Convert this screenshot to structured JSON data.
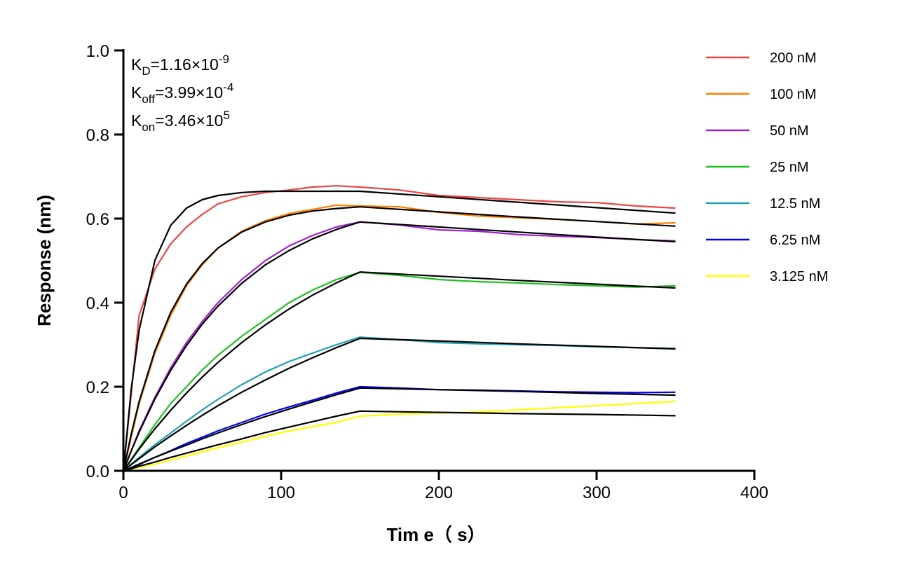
{
  "chart_data": {
    "type": "line",
    "title": "",
    "xlabel": "Tim e（ s）",
    "ylabel": "Response (nm)",
    "xlim": [
      0,
      400
    ],
    "ylim": [
      0,
      1.0
    ],
    "xticks": [
      "0",
      "100",
      "200",
      "300",
      "400"
    ],
    "yticks": [
      "0.0",
      "0.2",
      "0.4",
      "0.6",
      "0.8",
      "1.0"
    ],
    "grid": false,
    "legend_position": "top-right",
    "annotations": [
      {
        "symbol": "K",
        "sub": "D",
        "value": "=1.16×10",
        "exp": "-9"
      },
      {
        "symbol": "K",
        "sub": "off",
        "value": "=3.99×10",
        "exp": "-4"
      },
      {
        "symbol": "K",
        "sub": "on",
        "value": "=3.46×10",
        "exp": "5"
      }
    ],
    "raw_x": [
      0,
      10,
      20,
      30,
      40,
      50,
      60,
      75,
      90,
      105,
      120,
      135,
      150,
      175,
      200,
      225,
      250,
      275,
      300,
      325,
      350
    ],
    "fit_x": [
      0,
      5,
      10,
      20,
      30,
      40,
      50,
      60,
      75,
      90,
      105,
      120,
      135,
      150,
      200,
      250,
      300,
      350
    ],
    "fit_color": "#000000",
    "series": [
      {
        "name": "200 nM",
        "color": "#ee4444",
        "raw": [
          0,
          0.37,
          0.48,
          0.54,
          0.58,
          0.61,
          0.635,
          0.652,
          0.662,
          0.668,
          0.675,
          0.678,
          0.675,
          0.668,
          0.655,
          0.65,
          0.645,
          0.64,
          0.638,
          0.63,
          0.625
        ],
        "fit": [
          0,
          0.196,
          0.335,
          0.501,
          0.584,
          0.625,
          0.645,
          0.655,
          0.662,
          0.665,
          0.665,
          0.665,
          0.665,
          0.665,
          0.652,
          0.639,
          0.626,
          0.613
        ]
      },
      {
        "name": "100 nM",
        "color": "#ff8000",
        "raw": [
          0,
          0.16,
          0.28,
          0.37,
          0.44,
          0.49,
          0.53,
          0.57,
          0.595,
          0.612,
          0.622,
          0.632,
          0.63,
          0.628,
          0.615,
          0.606,
          0.602,
          0.598,
          0.593,
          0.587,
          0.59
        ],
        "fit": [
          0,
          0.088,
          0.165,
          0.286,
          0.377,
          0.444,
          0.493,
          0.53,
          0.568,
          0.592,
          0.608,
          0.618,
          0.624,
          0.628,
          0.616,
          0.604,
          0.593,
          0.582
        ]
      },
      {
        "name": "50 nM",
        "color": "#a020d0",
        "raw": [
          0,
          0.095,
          0.175,
          0.245,
          0.305,
          0.355,
          0.4,
          0.455,
          0.5,
          0.535,
          0.56,
          0.58,
          0.592,
          0.585,
          0.573,
          0.57,
          0.562,
          0.558,
          0.555,
          0.55,
          0.547
        ],
        "fit": [
          0,
          0.048,
          0.092,
          0.171,
          0.239,
          0.298,
          0.349,
          0.392,
          0.446,
          0.49,
          0.524,
          0.552,
          0.574,
          0.592,
          0.58,
          0.568,
          0.556,
          0.545
        ]
      },
      {
        "name": "25 nM",
        "color": "#20c020",
        "raw": [
          0,
          0.055,
          0.11,
          0.16,
          0.2,
          0.24,
          0.275,
          0.32,
          0.36,
          0.4,
          0.43,
          0.455,
          0.472,
          0.465,
          0.455,
          0.45,
          0.447,
          0.443,
          0.44,
          0.437,
          0.44
        ],
        "fit": [
          0,
          0.026,
          0.052,
          0.1,
          0.144,
          0.185,
          0.223,
          0.258,
          0.305,
          0.347,
          0.385,
          0.418,
          0.447,
          0.473,
          0.463,
          0.453,
          0.444,
          0.435
        ]
      },
      {
        "name": "12.5 nM",
        "color": "#20a0b0",
        "raw": [
          0,
          0.032,
          0.062,
          0.09,
          0.118,
          0.145,
          0.17,
          0.205,
          0.235,
          0.26,
          0.28,
          0.3,
          0.318,
          0.312,
          0.305,
          0.302,
          0.3,
          0.298,
          0.295,
          0.293,
          0.291
        ],
        "fit": [
          0,
          0.015,
          0.029,
          0.057,
          0.083,
          0.108,
          0.132,
          0.155,
          0.187,
          0.216,
          0.244,
          0.269,
          0.293,
          0.315,
          0.309,
          0.302,
          0.296,
          0.29
        ]
      },
      {
        "name": "6.25 nM",
        "color": "#0000ff",
        "raw": [
          0,
          0.015,
          0.032,
          0.048,
          0.065,
          0.08,
          0.095,
          0.115,
          0.135,
          0.152,
          0.168,
          0.185,
          0.2,
          0.197,
          0.193,
          0.192,
          0.19,
          0.188,
          0.187,
          0.186,
          0.187
        ],
        "fit": [
          0,
          0.008,
          0.016,
          0.032,
          0.047,
          0.061,
          0.076,
          0.09,
          0.11,
          0.129,
          0.147,
          0.164,
          0.181,
          0.197,
          0.193,
          0.189,
          0.184,
          0.18
        ]
      },
      {
        "name": "3.125 nM",
        "color": "#ffff00",
        "raw": [
          0,
          0.008,
          0.016,
          0.026,
          0.035,
          0.045,
          0.055,
          0.068,
          0.082,
          0.095,
          0.105,
          0.115,
          0.13,
          0.135,
          0.137,
          0.14,
          0.145,
          0.15,
          0.155,
          0.16,
          0.165
        ],
        "fit": [
          0,
          0.005,
          0.011,
          0.021,
          0.032,
          0.042,
          0.052,
          0.062,
          0.076,
          0.091,
          0.104,
          0.117,
          0.13,
          0.142,
          0.139,
          0.136,
          0.134,
          0.131
        ]
      }
    ]
  }
}
